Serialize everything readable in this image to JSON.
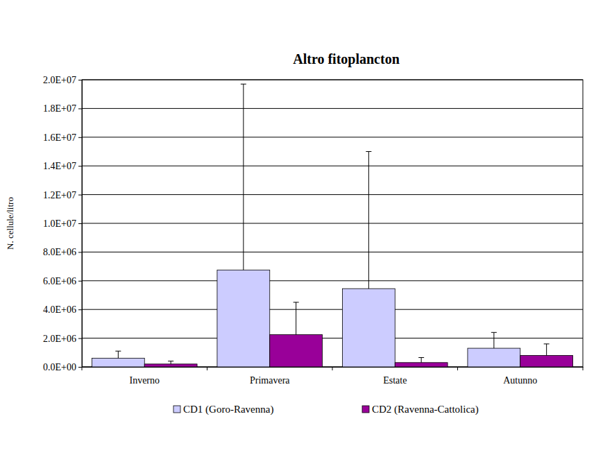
{
  "chart_data": {
    "type": "bar",
    "title": "Altro fitoplancton",
    "y_label": "N. cellule/litro",
    "categories": [
      "Inverno",
      "Primavera",
      "Estate",
      "Autunno"
    ],
    "series": [
      {
        "name": "CD1 (Goro-Ravenna)",
        "color": "#ccccff",
        "values": [
          600000,
          6750000,
          5450000,
          1300000
        ],
        "errors": [
          500000,
          12950000,
          9550000,
          1100000
        ]
      },
      {
        "name": "CD2 (Ravenna-Cattolica)",
        "color": "#990099",
        "values": [
          200000,
          2250000,
          300000,
          800000
        ],
        "errors": [
          200000,
          2250000,
          350000,
          800000
        ]
      }
    ],
    "ylim": [
      0,
      20000000
    ],
    "yticks": [
      {
        "value": 0,
        "label": "0.0E+00"
      },
      {
        "value": 2000000,
        "label": "2.0E+06"
      },
      {
        "value": 4000000,
        "label": "4.0E+06"
      },
      {
        "value": 6000000,
        "label": "6.0E+06"
      },
      {
        "value": 8000000,
        "label": "8.0E+06"
      },
      {
        "value": 10000000,
        "label": "1.0E+07"
      },
      {
        "value": 12000000,
        "label": "1.2E+07"
      },
      {
        "value": 14000000,
        "label": "1.4E+07"
      },
      {
        "value": 16000000,
        "label": "1.6E+07"
      },
      {
        "value": 18000000,
        "label": "1.8E+07"
      },
      {
        "value": 20000000,
        "label": "2.0E+07"
      }
    ],
    "grid": true,
    "legend": "bottom"
  }
}
